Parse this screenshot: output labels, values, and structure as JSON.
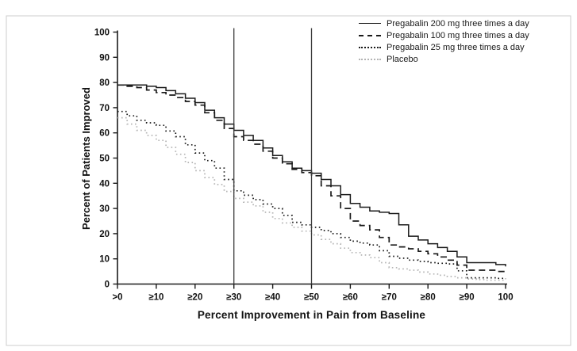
{
  "figure": {
    "background": "#ffffff",
    "border_color": "#cdcdcd"
  },
  "chart_data": {
    "type": "line",
    "title": "",
    "xlabel": "Percent Improvement in Pain from Baseline",
    "ylabel": "Percent of Patients Improved",
    "xlim": [
      0,
      100
    ],
    "ylim": [
      0,
      100
    ],
    "grid": false,
    "legend_position": "top-right-inside",
    "x_tick_values": [
      0,
      10,
      20,
      30,
      40,
      50,
      60,
      70,
      80,
      90,
      100
    ],
    "x_tick_labels": [
      ">0",
      "≥10",
      "≥20",
      "≥30",
      "≥40",
      "≥50",
      "≥60",
      "≥70",
      "≥80",
      "≥90",
      "100"
    ],
    "y_tick_values": [
      0,
      10,
      20,
      30,
      40,
      50,
      60,
      70,
      80,
      90,
      100
    ],
    "y_tick_labels": [
      "0",
      "10",
      "20",
      "30",
      "40",
      "50",
      "60",
      "70",
      "80",
      "90",
      "100"
    ],
    "reference_lines_x": [
      30,
      50
    ],
    "axis_color": "#1a1a1a",
    "reference_line_color": "#3a3a3a",
    "x": [
      0,
      5,
      10,
      15,
      20,
      25,
      30,
      35,
      40,
      45,
      50,
      55,
      60,
      65,
      70,
      75,
      80,
      85,
      90,
      95,
      100
    ],
    "series": [
      {
        "name": "Pregabalin 200 mg three times a day",
        "style": "solid",
        "color": "#1a1a1a",
        "values": [
          79,
          79,
          78,
          75.5,
          72,
          66,
          61,
          57,
          51,
          46,
          44,
          39,
          32,
          29,
          28,
          19,
          16,
          13,
          8.5,
          8.5,
          7
        ]
      },
      {
        "name": "Pregabalin 100 mg three times a day",
        "style": "dashed",
        "color": "#1a1a1a",
        "values": [
          79,
          78,
          76,
          74,
          71,
          65,
          58.5,
          55.5,
          50,
          45.5,
          43,
          35,
          25,
          21.5,
          15.5,
          14,
          12,
          9.5,
          5.5,
          5.5,
          4.5
        ]
      },
      {
        "name": "Pregabalin 25 mg three times a day",
        "style": "dotted",
        "color": "#1a1a1a",
        "values": [
          68.5,
          65,
          63,
          58.5,
          52,
          46,
          37,
          33.5,
          30,
          24.5,
          22.5,
          20,
          17,
          15.5,
          11,
          9.5,
          8.5,
          8,
          2.5,
          2.5,
          2
        ]
      },
      {
        "name": "Placebo",
        "style": "dotted-light",
        "color": "#b4b4b4",
        "values": [
          66,
          61,
          57,
          51.5,
          45,
          39.5,
          34,
          31,
          26,
          22.5,
          19.5,
          16,
          12.5,
          10.5,
          6.5,
          5.5,
          4,
          3,
          2,
          1.5,
          1.5
        ]
      }
    ]
  }
}
